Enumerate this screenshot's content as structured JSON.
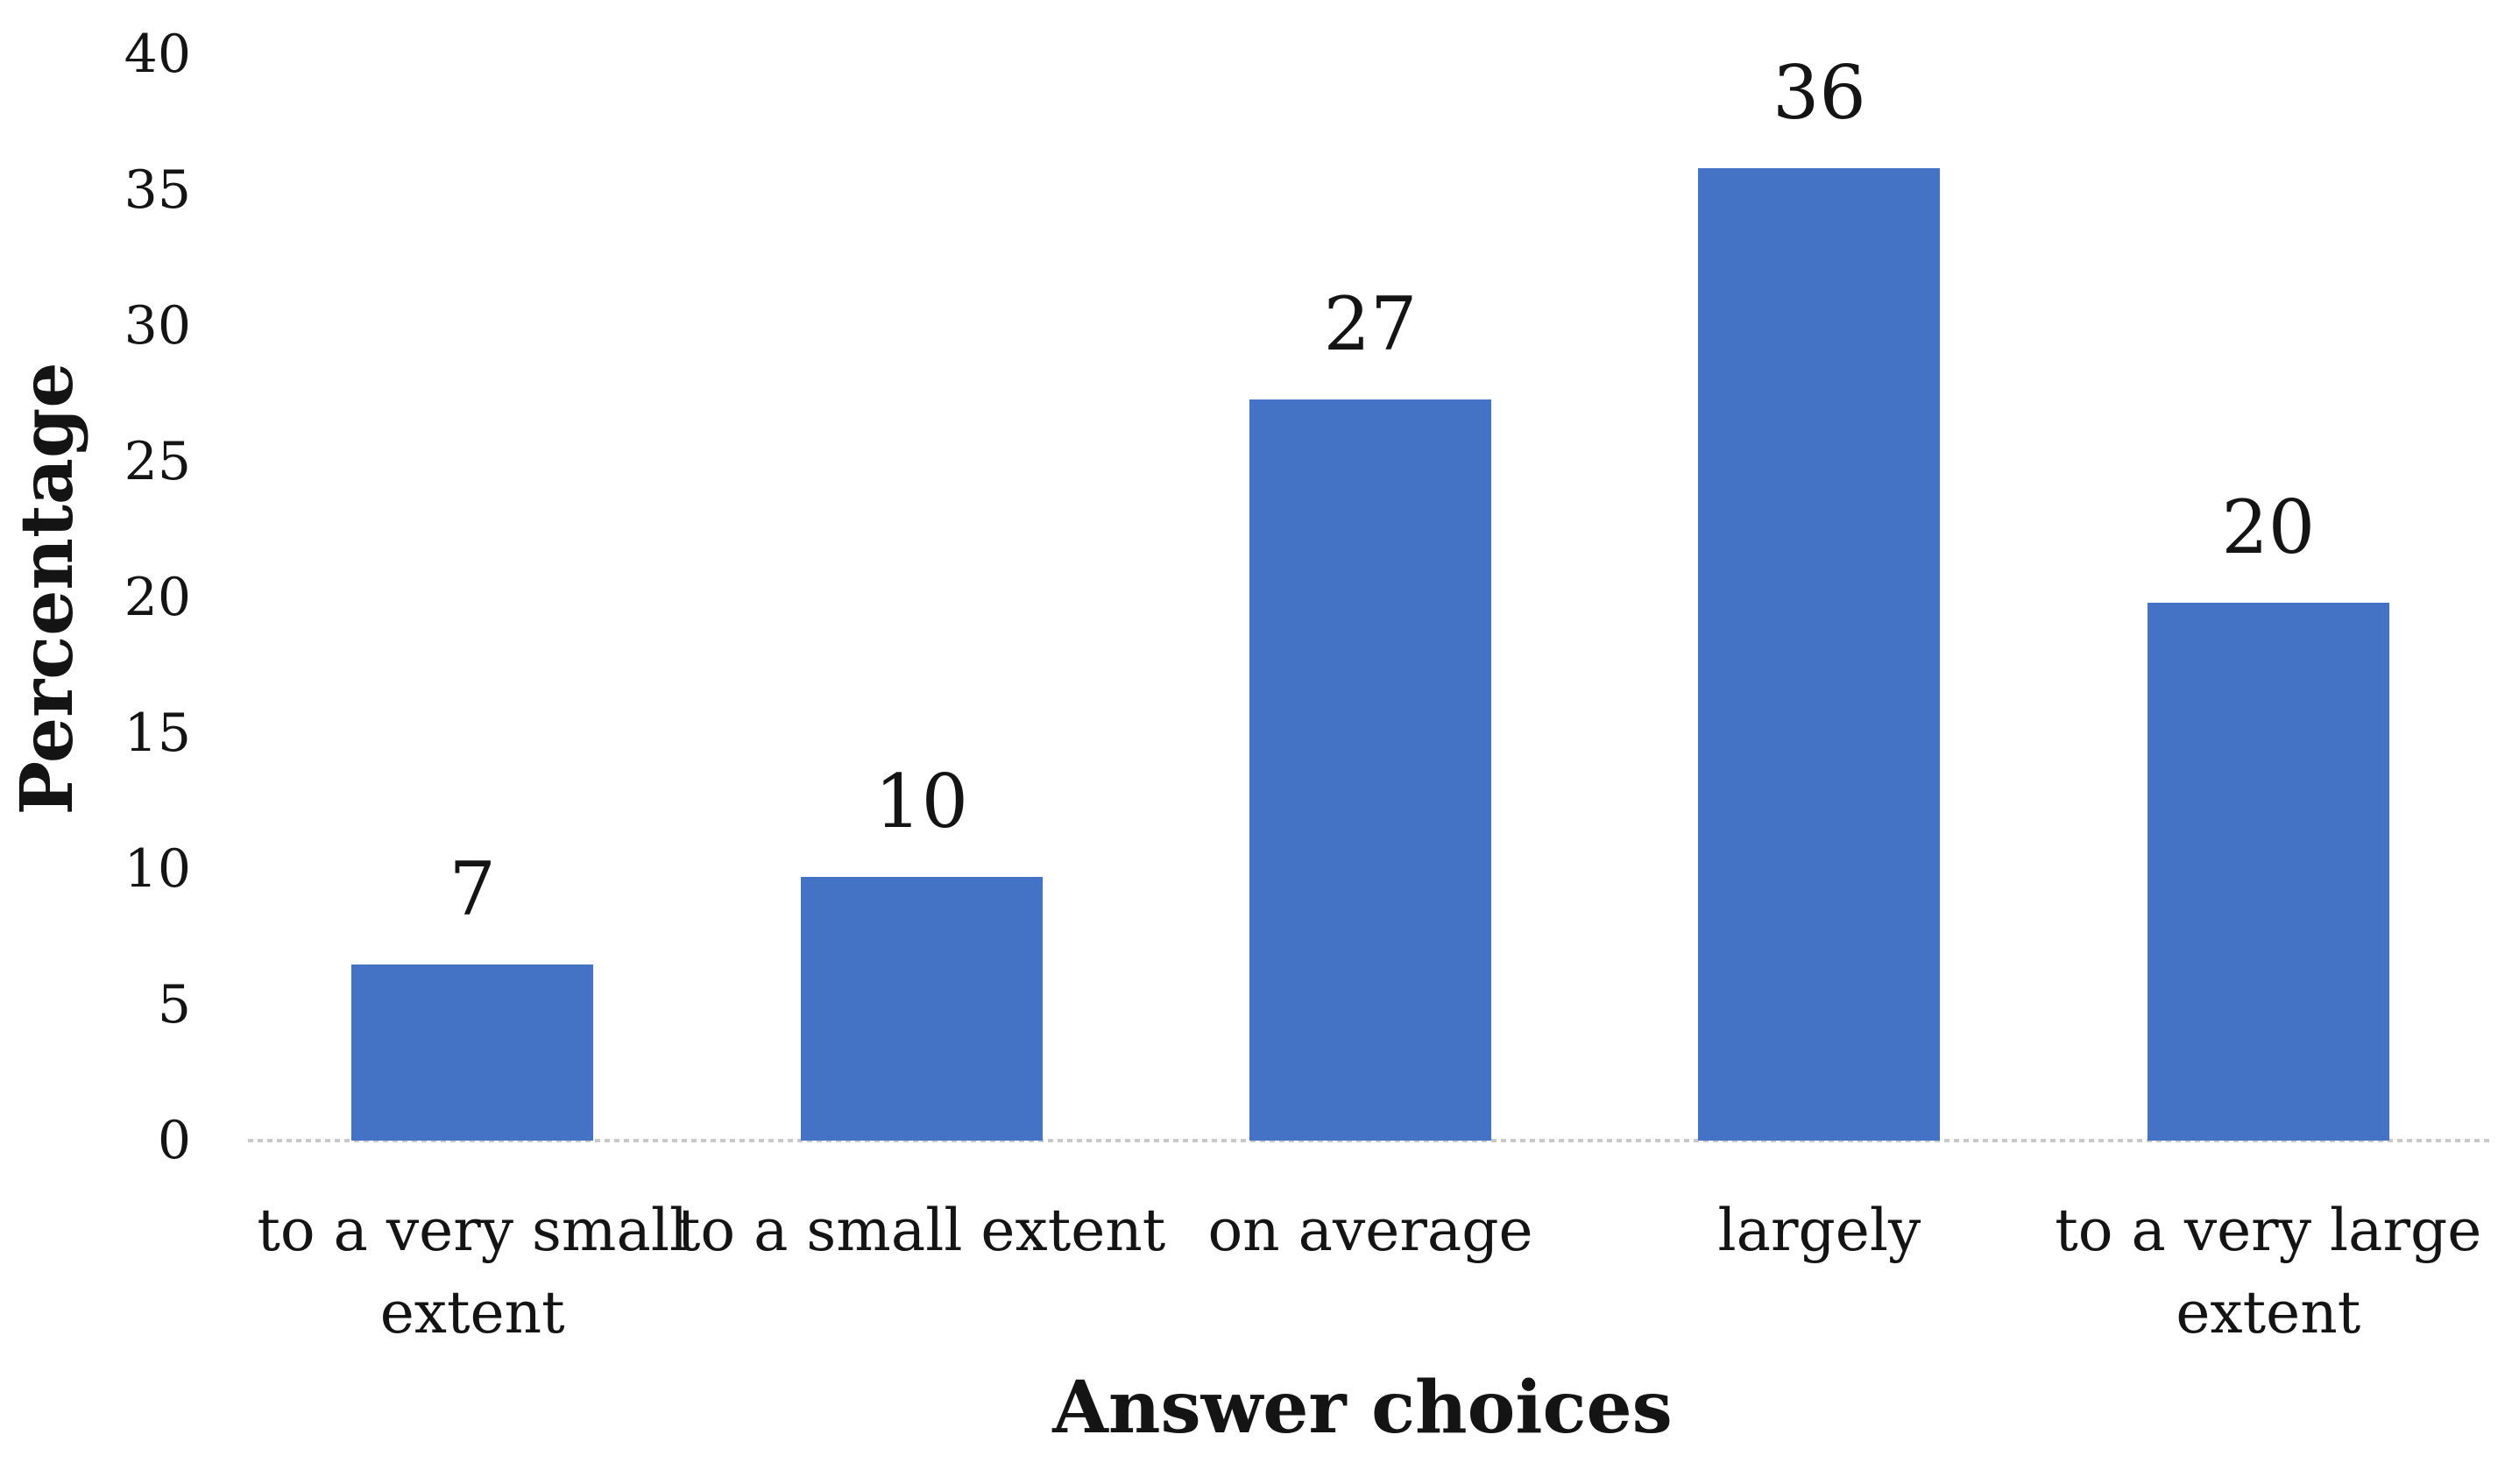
{
  "figure": {
    "background": "#ffffff"
  },
  "chart_data": {
    "type": "bar",
    "title": "",
    "xlabel": "Answer choices",
    "ylabel": "Percentage",
    "categories": [
      "to a very small extent",
      "to a small extent",
      "on average",
      "largely",
      "to a very large extent"
    ],
    "values": [
      7,
      10,
      27,
      36,
      20
    ],
    "bar_value_labels": [
      "7",
      "10",
      "27",
      "36",
      "20"
    ],
    "drawn_values": [
      6.5,
      9.7,
      27.3,
      35.8,
      19.8
    ],
    "xtick_labels_wrapped": [
      "to a very small\nextent",
      "to a small extent",
      "on average",
      "largely",
      "to a very large\nextent"
    ],
    "ylim": [
      0,
      40
    ],
    "yticks": [
      0,
      5,
      10,
      15,
      20,
      25,
      30,
      35,
      40
    ],
    "grid": "off",
    "legend": "none",
    "bar_color": "#4472c4",
    "axis_line_color": "#c9c9c9",
    "text_color": "#141414"
  }
}
